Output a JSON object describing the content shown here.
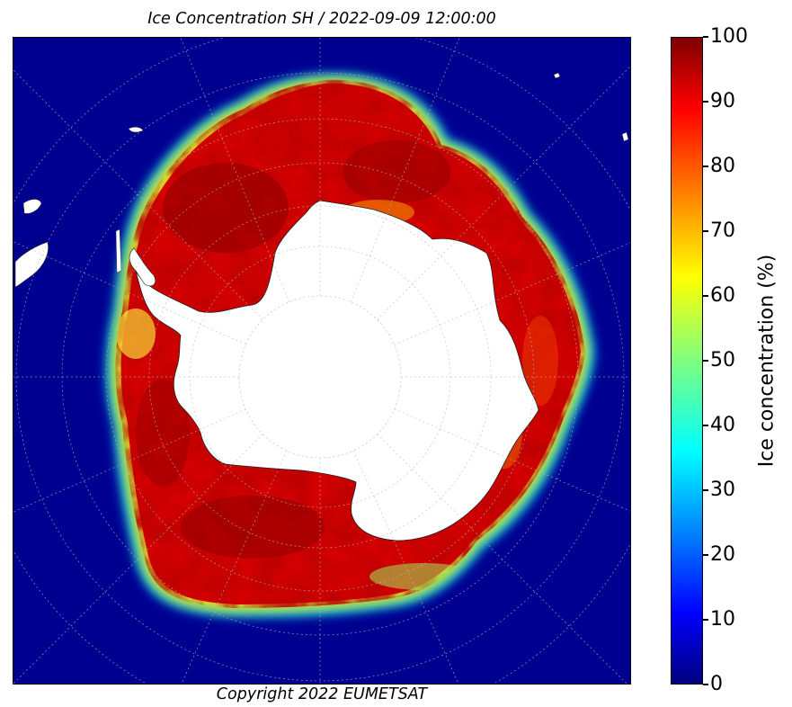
{
  "title": "Ice Concentration SH / 2022-09-09 12:00:00",
  "copyright": "Copyright 2022 EUMETSAT",
  "colorbar": {
    "label": "Ice concentration (%)",
    "ticks": [
      "0",
      "10",
      "20",
      "30",
      "40",
      "50",
      "60",
      "70",
      "80",
      "90",
      "100"
    ],
    "min": 0,
    "max": 100,
    "colormap": [
      "#00007f",
      "#0000ff",
      "#007fff",
      "#00ffff",
      "#7fff7f",
      "#ffff00",
      "#ff7f00",
      "#ff0000",
      "#7f0000"
    ]
  },
  "map": {
    "projection": "polar-stereographic-south",
    "ocean_color": "#00008b",
    "land_color": "#ffffff",
    "ice_color": "#c40000",
    "graticule": "dotted"
  }
}
